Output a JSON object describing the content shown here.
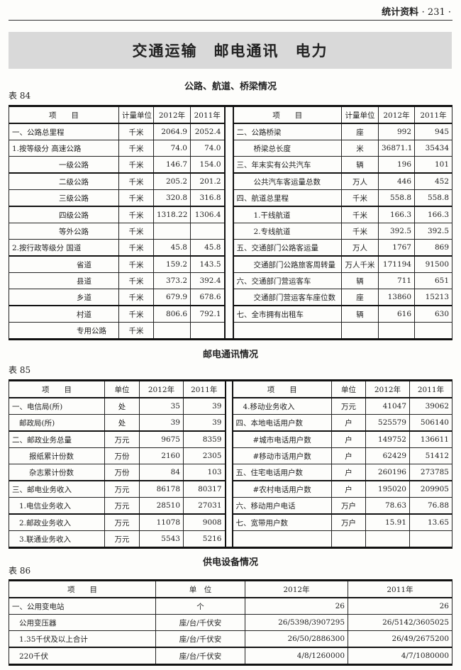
{
  "header": {
    "section": "统计资料",
    "page": "· 231 ·"
  },
  "banner": "交通运输　邮电通讯　电力",
  "t84": {
    "caption": "公路、航道、桥梁情况",
    "no": "表 84",
    "headers": [
      "项　　目",
      "计量单位",
      "2012年",
      "2011年",
      "项　　目",
      "计量单位",
      "2012年",
      "2011年"
    ],
    "rows": [
      {
        "l": [
          "一、公路总里程",
          "千米",
          "2064.9",
          "2052.4"
        ],
        "ll": 0,
        "r": [
          "二、公路桥梁",
          "座",
          "992",
          "945"
        ],
        "rl": 0
      },
      {
        "l": [
          "1.按等级分 高速公路",
          "千米",
          "74.0",
          "74.0"
        ],
        "ll": 0,
        "r": [
          "桥梁总长度",
          "米",
          "36871.1",
          "35434"
        ],
        "rl": 2
      },
      {
        "l": [
          "一级公路",
          "千米",
          "146.7",
          "154.0"
        ],
        "ll": 3,
        "r": [
          "三、年末实有公共汽车",
          "辆",
          "196",
          "101"
        ],
        "rl": 0
      },
      {
        "l": [
          "二级公路",
          "千米",
          "205.2",
          "201.2"
        ],
        "ll": 3,
        "r": [
          "公共汽车客运量总数",
          "万人",
          "446",
          "452"
        ],
        "rl": 2
      },
      {
        "l": [
          "三级公路",
          "千米",
          "320.8",
          "316.8"
        ],
        "ll": 3,
        "r": [
          "四、航道总里程",
          "千米",
          "558.8",
          "558.8"
        ],
        "rl": 0
      },
      {
        "l": [
          "四级公路",
          "千米",
          "1318.22",
          "1306.4"
        ],
        "ll": 3,
        "r": [
          "1.干线航道",
          "千米",
          "166.3",
          "166.3"
        ],
        "rl": 2
      },
      {
        "l": [
          "等外公路",
          "千米",
          "",
          ""
        ],
        "ll": 3,
        "r": [
          "2.专线航道",
          "千米",
          "392.5",
          "392.5"
        ],
        "rl": 2
      },
      {
        "l": [
          "2.按行政等级分 国道",
          "千米",
          "45.8",
          "45.8"
        ],
        "ll": 0,
        "r": [
          "五、交通部门公路客运量",
          "万人",
          "1767",
          "869"
        ],
        "rl": 0
      },
      {
        "l": [
          "省道",
          "千米",
          "159.2",
          "143.5"
        ],
        "ll": 4,
        "r": [
          "交通部门公路旅客周转量",
          "万人千米",
          "171194",
          "91500"
        ],
        "rl": 2
      },
      {
        "l": [
          "县道",
          "千米",
          "373.2",
          "392.4"
        ],
        "ll": 4,
        "r": [
          "六、交通部门营运客车",
          "辆",
          "711",
          "651"
        ],
        "rl": 0
      },
      {
        "l": [
          "乡道",
          "千米",
          "679.9",
          "678.6"
        ],
        "ll": 4,
        "r": [
          "交通部门营运客车座位数",
          "座",
          "13860",
          "15213"
        ],
        "rl": 2
      },
      {
        "l": [
          "村道",
          "千米",
          "806.6",
          "792.1"
        ],
        "ll": 4,
        "r": [
          "七、全市拥有出租车",
          "辆",
          "616",
          "630"
        ],
        "rl": 0
      },
      {
        "l": [
          "专用公路",
          "千米",
          "",
          ""
        ],
        "ll": 4,
        "r": [
          "",
          "",
          "",
          ""
        ],
        "rl": 0
      }
    ]
  },
  "t85": {
    "caption": "邮电通讯情况",
    "no": "表 85",
    "headers": [
      "项　　目",
      "单位",
      "2012年",
      "2011年",
      "项　　目",
      "单位",
      "2012年",
      "2011年"
    ],
    "rows": [
      {
        "l": [
          "一、电信局(所)",
          "处",
          "35",
          "39"
        ],
        "ll": 0,
        "r": [
          "4.移动业务收入",
          "万元",
          "41047",
          "39062"
        ],
        "rl": 1
      },
      {
        "l": [
          "邮政局(所)",
          "处",
          "39",
          "39"
        ],
        "ll": 1,
        "r": [
          "四、本地电话用户数",
          "户",
          "525579",
          "506140"
        ],
        "rl": 0
      },
      {
        "l": [
          "二、邮政业务总量",
          "万元",
          "9675",
          "8359"
        ],
        "ll": 0,
        "r": [
          "#城市电话用户数",
          "户",
          "149752",
          "136611"
        ],
        "rl": 2
      },
      {
        "l": [
          "报纸累计份数",
          "万份",
          "2160",
          "2305"
        ],
        "ll": 2,
        "r": [
          "#移动市话用户数",
          "户",
          "62429",
          "51412"
        ],
        "rl": 2
      },
      {
        "l": [
          "杂志累计份数",
          "万份",
          "84",
          "103"
        ],
        "ll": 2,
        "r": [
          "五、住宅电话用户数",
          "户",
          "260196",
          "273785"
        ],
        "rl": 0
      },
      {
        "l": [
          "三、邮电业务收入",
          "万元",
          "86178",
          "80317"
        ],
        "ll": 0,
        "r": [
          "#农村电话用户数",
          "户",
          "195020",
          "209905"
        ],
        "rl": 2
      },
      {
        "l": [
          "1.电信业务收入",
          "万元",
          "28510",
          "27031"
        ],
        "ll": 1,
        "r": [
          "六、移动用户电话",
          "万户",
          "78.63",
          "76.88"
        ],
        "rl": 0
      },
      {
        "l": [
          "2.邮政业务收入",
          "万元",
          "11078",
          "9008"
        ],
        "ll": 1,
        "r": [
          "七、宽带用户数",
          "万户",
          "15.91",
          "13.65"
        ],
        "rl": 0
      },
      {
        "l": [
          "3.联通业务收入",
          "万元",
          "5543",
          "5216"
        ],
        "ll": 1,
        "r": [
          "",
          "",
          "",
          ""
        ],
        "rl": 0
      }
    ]
  },
  "t86": {
    "caption": "供电设备情况",
    "no": "表 86",
    "headers": [
      "项　　目",
      "单　位",
      "2012年",
      "2011年"
    ],
    "rows": [
      {
        "l": [
          "一、公用变电站",
          "个",
          "26",
          "26"
        ],
        "ll": 0
      },
      {
        "l": [
          "公用变压器",
          "座/台/千伏安",
          "26/5398/3907295",
          "26/5142/3605025"
        ],
        "ll": 1
      },
      {
        "l": [
          "1.35千伏及以上合计",
          "座/台/千伏安",
          "26/50/2886300",
          "26/49/2675200"
        ],
        "ll": 1
      },
      {
        "l": [
          "220千伏",
          "座/台/千伏安",
          "4/8/1260000",
          "4/7/1080000"
        ],
        "ll": 1
      }
    ]
  }
}
